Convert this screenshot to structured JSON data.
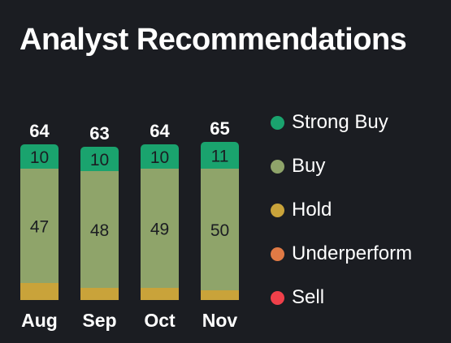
{
  "title": "Analyst Recommendations",
  "chart_data": {
    "type": "bar",
    "stacked": true,
    "categories": [
      "Aug",
      "Sep",
      "Oct",
      "Nov"
    ],
    "totals": [
      64,
      63,
      64,
      65
    ],
    "series": [
      {
        "name": "Strong Buy",
        "color": "#1aa36e",
        "values": [
          10,
          10,
          10,
          11
        ],
        "labeled": true
      },
      {
        "name": "Buy",
        "color": "#8fa46a",
        "values": [
          47,
          48,
          49,
          50
        ],
        "labeled": true
      },
      {
        "name": "Hold",
        "color": "#c9a33a",
        "values": [
          7,
          5,
          5,
          4
        ],
        "labeled": false
      },
      {
        "name": "Underperform",
        "color": "#e07a45",
        "values": [
          0,
          0,
          0,
          0
        ],
        "labeled": false
      },
      {
        "name": "Sell",
        "color": "#f0404a",
        "values": [
          0,
          0,
          0,
          0
        ],
        "labeled": false
      }
    ],
    "legend_position": "right",
    "grid": false
  }
}
